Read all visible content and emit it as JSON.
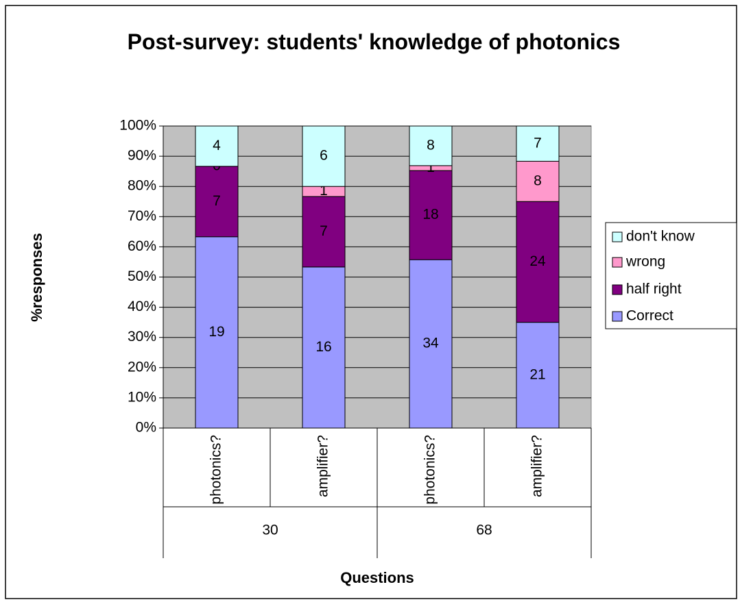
{
  "chart_data": {
    "type": "bar",
    "stacking": "percent",
    "title": "Post-survey: students' knowledge of photonics",
    "x_label": "Questions",
    "y_label": "%responses",
    "categories": [
      "photonics?",
      "amplifier?",
      "photonics?",
      "amplifier?"
    ],
    "groups": [
      "30",
      "68"
    ],
    "series": [
      {
        "name": "Correct",
        "color": "#9999ff",
        "values": [
          19,
          16,
          34,
          21
        ]
      },
      {
        "name": "half right",
        "color": "#800080",
        "values": [
          7,
          7,
          18,
          24
        ]
      },
      {
        "name": "wrong",
        "color": "#ff99cc",
        "values": [
          0,
          1,
          1,
          8
        ]
      },
      {
        "name": "don't know",
        "color": "#ccffff",
        "values": [
          4,
          6,
          8,
          7
        ]
      }
    ],
    "ylim": [
      0,
      100
    ],
    "yticks": [
      {
        "value": 0,
        "label": "0%"
      },
      {
        "value": 10,
        "label": "10%"
      },
      {
        "value": 20,
        "label": "20%"
      },
      {
        "value": 30,
        "label": "30%"
      },
      {
        "value": 40,
        "label": "40%"
      },
      {
        "value": 50,
        "label": "50%"
      },
      {
        "value": 60,
        "label": "60%"
      },
      {
        "value": 70,
        "label": "70%"
      },
      {
        "value": 80,
        "label": "80%"
      },
      {
        "value": 90,
        "label": "90%"
      },
      {
        "value": 100,
        "label": "100%"
      }
    ],
    "grid": true,
    "legend": "right"
  }
}
